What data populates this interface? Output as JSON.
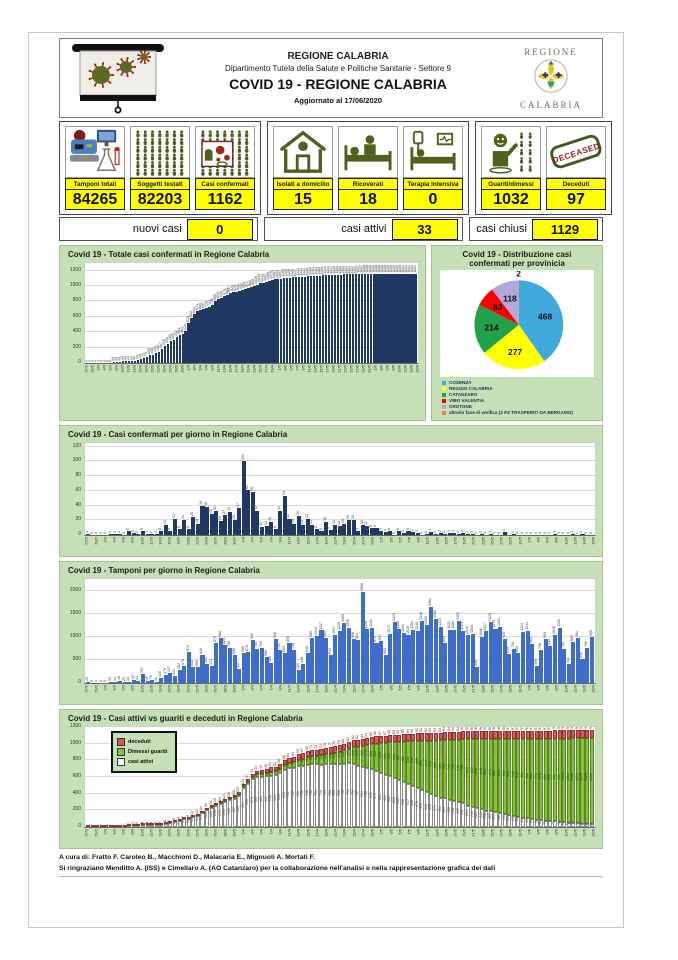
{
  "header": {
    "org": "REGIONE CALABRIA",
    "dept": "Dipartimento Tutela della Salute e Politiche Sanitarie - Settore 9",
    "title": "COVID 19 - REGIONE CALABRIA",
    "updated": "Aggiornato al  17/06/2020",
    "logo_top": "REGIONE",
    "logo_bottom": "CALABRIA"
  },
  "stats": {
    "cards": [
      {
        "label": "Tamponi totali",
        "value": "84265",
        "icon": "lab-equipment-icon"
      },
      {
        "label": "Soggetti testati",
        "value": "82203",
        "icon": "people-grid-icon"
      },
      {
        "label": "Casi confermati",
        "value": "1162",
        "icon": "people-virus-icon"
      },
      {
        "label": "Isolati a domicilio",
        "value": "15",
        "icon": "home-isolation-icon"
      },
      {
        "label": "Ricoverati",
        "value": "18",
        "icon": "hospital-bed-icon"
      },
      {
        "label": "Terapia intensiva",
        "value": "0",
        "icon": "intensive-care-icon"
      },
      {
        "label": "Guariti/dimessi",
        "value": "1032",
        "icon": "recovered-person-icon"
      },
      {
        "label": "Deceduti",
        "value": "97",
        "icon": "deceased-stamp-icon"
      }
    ],
    "stamp_text": "DECEASED",
    "summary": [
      {
        "label": "nuovi casi",
        "value": "0"
      },
      {
        "label": "casi attivi",
        "value": "33"
      },
      {
        "label": "casi chiusi",
        "value": "1129"
      }
    ]
  },
  "footer": {
    "line1": "A cura di: Fratto F. Caroleo B., Macchioni D., Malacaria E., Mignuoli A. Mortati F.",
    "line2": "Si ringraziano Menditto A. (ISS) e Cimellaro A. (AO Catanzaro) per la collaborazione nell'analisi e nella rappresentazione grafica dei dati"
  },
  "colors": {
    "panel_green": "#c5e0b4",
    "highlight_yellow": "#ffff00",
    "navy_bar": "#1f3864",
    "royal_blue_bar": "#3e6dcc",
    "recovered_green": "#85c23d",
    "deceased_red": "#d95757",
    "active_white": "#ffffff",
    "icon_olive": "#50611e"
  },
  "dates": [
    "27/2",
    "28/2",
    "29/2",
    "1/3",
    "2/3",
    "3/3",
    "4/3",
    "5/3",
    "6/3",
    "7/3",
    "8/3",
    "9/3",
    "10/3",
    "11/3",
    "12/3",
    "13/3",
    "14/3",
    "15/3",
    "16/3",
    "17/3",
    "18/3",
    "19/3",
    "20/3",
    "21/3",
    "22/3",
    "23/3",
    "24/3",
    "25/3",
    "26/3",
    "27/3",
    "28/3",
    "29/3",
    "30/3",
    "31/3",
    "1/4",
    "2/4",
    "3/4",
    "4/4",
    "5/4",
    "6/4",
    "7/4",
    "8/4",
    "9/4",
    "10/4",
    "11/4",
    "12/4",
    "13/4",
    "14/4",
    "15/4",
    "16/4",
    "17/4",
    "18/4",
    "19/4",
    "20/4",
    "21/4",
    "22/4",
    "23/4",
    "24/4",
    "25/4",
    "26/4",
    "27/4",
    "28/4",
    "29/4",
    "30/4",
    "1/5",
    "2/5",
    "3/5",
    "4/5",
    "5/5",
    "6/5",
    "7/5",
    "8/5",
    "9/5",
    "10/5",
    "11/5",
    "12/5",
    "13/5",
    "14/5",
    "15/5",
    "16/5",
    "17/5",
    "18/5",
    "19/5",
    "20/5",
    "21/5",
    "22/5",
    "23/5",
    "24/5",
    "25/5",
    "26/5",
    "27/5",
    "28/5",
    "29/5",
    "30/5",
    "31/5",
    "1/6",
    "2/6",
    "3/6",
    "4/6",
    "5/6",
    "6/6",
    "7/6",
    "8/6",
    "9/6",
    "10/6",
    "11/6",
    "12/6",
    "13/6",
    "14/6",
    "15/6",
    "16/6"
  ],
  "chart_data": [
    {
      "id": "totale-casi",
      "type": "bar",
      "title": "Covid 19 - Totale casi confermati in Regione Calabria",
      "categories_ref": "dates",
      "values_note": "cumulative sum of daily confirmed cases, final value 1162",
      "yticks": [
        0,
        200,
        400,
        600,
        800,
        1000,
        1200
      ],
      "ylim": [
        0,
        1300
      ],
      "bar_color": "#1f3864",
      "grid": true,
      "legend": "none"
    },
    {
      "id": "casi-per-giorno",
      "type": "bar",
      "title": "Covid 19 - Casi confermati per giorno in Regione Calabria",
      "categories_ref": "dates",
      "values": [
        1,
        0,
        0,
        0,
        0,
        1,
        1,
        2,
        0,
        5,
        3,
        2,
        5,
        1,
        2,
        1,
        6,
        14,
        5,
        22,
        8,
        21,
        8,
        25,
        15,
        39,
        38,
        28,
        33,
        19,
        27,
        31,
        20,
        37,
        101,
        61,
        59,
        33,
        11,
        12,
        18,
        8,
        32,
        53,
        22,
        15,
        26,
        14,
        22,
        14,
        8,
        5,
        18,
        7,
        13,
        12,
        15,
        20,
        20,
        5,
        13,
        12,
        9,
        9,
        6,
        4,
        6,
        0,
        6,
        3,
        5,
        4,
        3,
        0,
        2,
        4,
        1,
        3,
        2,
        3,
        3,
        2,
        3,
        2,
        1,
        0,
        2,
        0,
        1,
        0,
        0,
        4,
        0,
        1,
        0,
        0,
        0,
        0,
        0,
        0,
        0,
        0,
        1,
        0,
        0,
        0,
        2,
        0,
        1,
        0,
        0
      ],
      "yticks": [
        0,
        20,
        40,
        60,
        80,
        100,
        120
      ],
      "ylim": [
        0,
        125
      ],
      "bar_color": "#1f3864",
      "grid": true,
      "legend": "none"
    },
    {
      "id": "tamponi-per-giorno",
      "type": "bar",
      "title": "Covid 19 - Tamponi per giorno in Regione Calabria",
      "categories_ref": "dates",
      "values": [
        23,
        9,
        4,
        8,
        5,
        16,
        14,
        46,
        20,
        14,
        62,
        43,
        187,
        45,
        75,
        31,
        115,
        173,
        207,
        144,
        282,
        378,
        674,
        348,
        356,
        616,
        413,
        372,
        875,
        968,
        825,
        756,
        598,
        314,
        656,
        676,
        926,
        736,
        763,
        556,
        436,
        958,
        721,
        659,
        856,
        718,
        285,
        418,
        648,
        980,
        1013,
        1137,
        966,
        613,
        1047,
        1129,
        1309,
        1198,
        958,
        924,
        1968,
        1159,
        1191,
        874,
        907,
        603,
        1071,
        1319,
        1160,
        1091,
        1040,
        1151,
        1135,
        1348,
        1263,
        1651,
        1390,
        1213,
        863,
        1143,
        1156,
        1352,
        1123,
        1042,
        1060,
        356,
        1006,
        1117,
        1328,
        1175,
        1203,
        945,
        619,
        728,
        650,
        1114,
        1131,
        853,
        359,
        718,
        958,
        811,
        1038,
        1192,
        726,
        411,
        889,
        984,
        530,
        760,
        990
      ],
      "yticks": [
        0,
        500,
        1000,
        1500,
        2000
      ],
      "ylim": [
        0,
        2250
      ],
      "bar_color": "#3e6dcc",
      "grid": true,
      "legend": "none"
    },
    {
      "id": "attivi-vs-guariti-deceduti",
      "type": "stacked-bar",
      "title": "Covid 19 - Casi attivi vs guariti e deceduti in Regione Calabria",
      "categories_ref": "dates",
      "legend_position": "top-left",
      "series": [
        {
          "name": "casi attivi",
          "color": "#ffffff",
          "values_note": "computed as cumulative confirmed minus guariti minus deceduti, final 33"
        },
        {
          "name": "Dimessi guariti",
          "color": "#85c23d",
          "values": [
            0,
            0,
            0,
            0,
            0,
            0,
            0,
            0,
            0,
            0,
            0,
            0,
            0,
            0,
            0,
            0,
            0,
            0,
            0,
            0,
            0,
            0,
            0,
            1,
            1,
            2,
            4,
            5,
            8,
            10,
            12,
            15,
            18,
            20,
            23,
            26,
            30,
            34,
            38,
            42,
            46,
            50,
            55,
            60,
            65,
            70,
            76,
            82,
            90,
            98,
            106,
            114,
            122,
            130,
            140,
            150,
            162,
            175,
            200,
            225,
            250,
            275,
            300,
            330,
            355,
            380,
            405,
            430,
            460,
            485,
            510,
            535,
            560,
            590,
            615,
            640,
            665,
            690,
            700,
            715,
            730,
            745,
            760,
            800,
            815,
            830,
            845,
            860,
            870,
            880,
            890,
            900,
            915,
            928,
            940,
            950,
            958,
            965,
            972,
            978,
            983,
            988,
            992,
            998,
            1004,
            1010,
            1016,
            1021,
            1025,
            1029,
            1032
          ]
        },
        {
          "name": "deceduti",
          "color": "#d95757",
          "values": [
            0,
            0,
            0,
            0,
            0,
            0,
            0,
            0,
            0,
            0,
            0,
            0,
            1,
            1,
            1,
            2,
            2,
            3,
            4,
            5,
            6,
            7,
            9,
            10,
            12,
            14,
            16,
            18,
            20,
            22,
            24,
            26,
            28,
            31,
            34,
            37,
            40,
            43,
            46,
            48,
            51,
            53,
            56,
            58,
            61,
            63,
            65,
            67,
            69,
            71,
            72,
            74,
            75,
            77,
            78,
            79,
            80,
            81,
            82,
            82,
            83,
            84,
            85,
            86,
            87,
            87,
            88,
            88,
            89,
            89,
            90,
            90,
            91,
            91,
            92,
            92,
            93,
            93,
            93,
            94,
            94,
            94,
            95,
            95,
            95,
            95,
            96,
            96,
            96,
            96,
            96,
            96,
            97,
            97,
            97,
            97,
            97,
            97,
            97,
            97,
            97,
            97,
            97,
            97,
            97,
            97,
            97,
            97,
            97,
            97,
            97
          ]
        }
      ],
      "yticks": [
        0,
        200,
        400,
        600,
        800,
        1000,
        1200
      ],
      "ylim": [
        0,
        1200
      ],
      "grid": true
    },
    {
      "id": "distribuzione-province",
      "type": "pie",
      "title": "Covid 19 - Distribuzione casi confermati per provinicia",
      "labels": [
        "COSENZA",
        "REGGIO CALABRIA",
        "CATANZARO",
        "VIBO VALENTIA",
        "CROTONE",
        "altro/in fase di verifica (2 PZ TRASFERITI DA BERGAMO)"
      ],
      "values": [
        468,
        277,
        214,
        83,
        118,
        2
      ],
      "colors": [
        "#3fa9dc",
        "#ffff00",
        "#22a14b",
        "#ff0000",
        "#b3a6d9",
        "#e8823d"
      ],
      "total": 1162,
      "legend_position": "bottom-left"
    }
  ]
}
